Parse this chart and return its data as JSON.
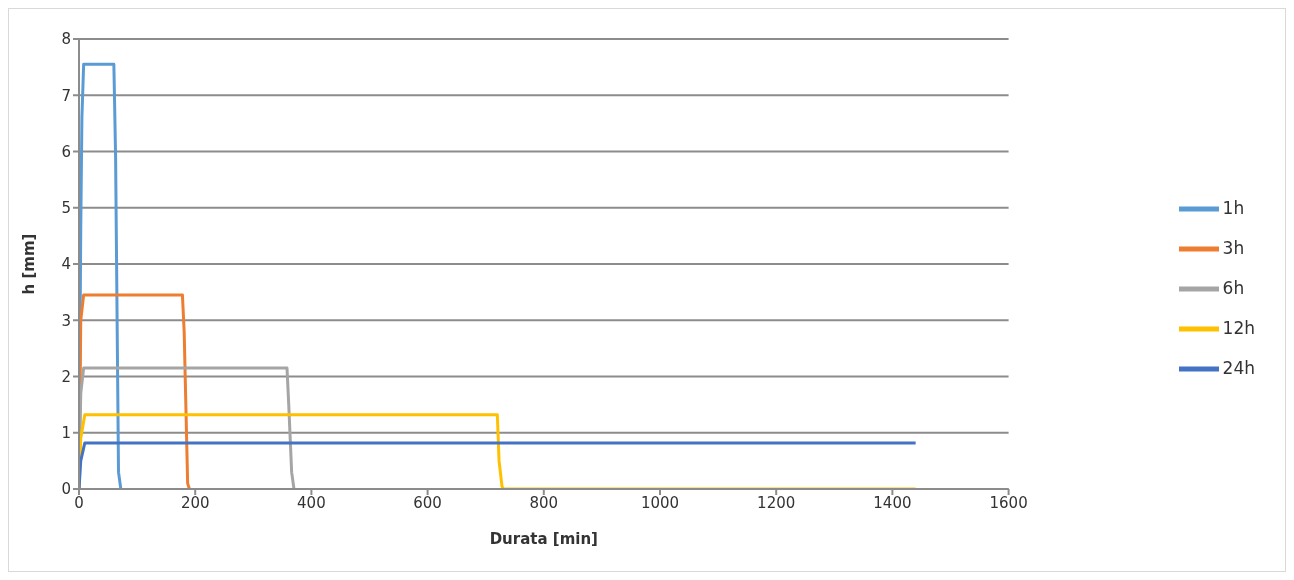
{
  "chart_data": {
    "type": "line",
    "xlabel": "Durata [min]",
    "ylabel": "h [mm]",
    "xlim": [
      0,
      1600
    ],
    "xticks": [
      0,
      200,
      400,
      600,
      800,
      1000,
      1200,
      1400,
      1600
    ],
    "ylim": [
      0,
      8
    ],
    "yticks": [
      0,
      1,
      2,
      3,
      4,
      5,
      6,
      7,
      8
    ],
    "grid": "y",
    "legend": "right",
    "marker": "none",
    "line_style": "solid",
    "series": [
      {
        "name": "1h",
        "color": "#5b9bd5",
        "x": [
          0,
          3,
          5,
          8,
          60,
          63,
          68,
          72
        ],
        "values": [
          0,
          4.6,
          6.6,
          7.55,
          7.55,
          5.9,
          0.3,
          0
        ]
      },
      {
        "name": "3h",
        "color": "#ed7d31",
        "x": [
          0,
          3,
          8,
          178,
          181,
          187,
          190
        ],
        "values": [
          0,
          3,
          3.45,
          3.45,
          2.8,
          0.1,
          0
        ]
      },
      {
        "name": "6h",
        "color": "#a5a5a5",
        "x": [
          0,
          3,
          8,
          358,
          361,
          366,
          370
        ],
        "values": [
          0,
          1.7,
          2.15,
          2.15,
          1.5,
          0.3,
          0
        ]
      },
      {
        "name": "12h",
        "color": "#ffc000",
        "x": [
          0,
          3,
          10,
          720,
          723,
          728,
          730,
          1440
        ],
        "values": [
          0,
          0.9,
          1.32,
          1.32,
          0.5,
          0.05,
          0,
          0
        ]
      },
      {
        "name": "24h",
        "color": "#4472c4",
        "x": [
          0,
          3,
          10,
          1440
        ],
        "values": [
          0,
          0.5,
          0.82,
          0.82
        ]
      }
    ]
  }
}
